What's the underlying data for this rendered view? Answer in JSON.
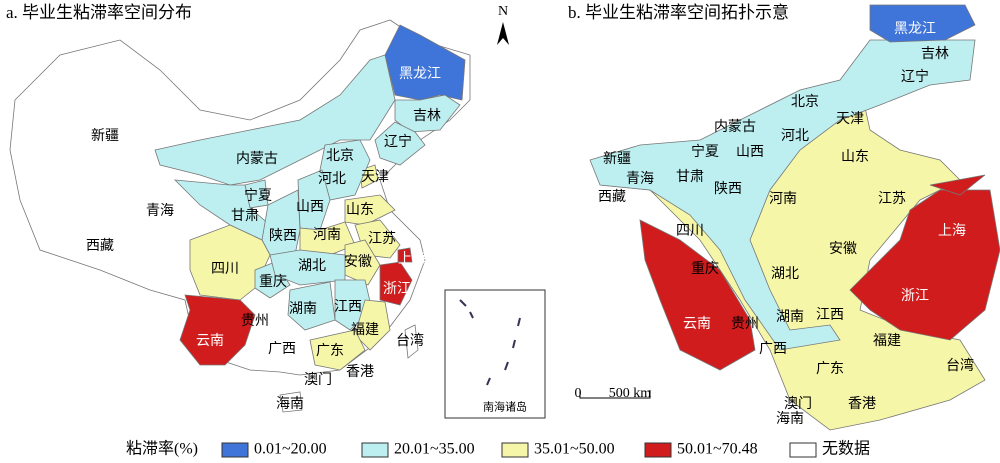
{
  "map_a": {
    "title": "a. 毕业生粘滞率空间分布",
    "classes": [
      0,
      1,
      1,
      1,
      1,
      2,
      1,
      4,
      1,
      1,
      2,
      4,
      1,
      1,
      4,
      2,
      2,
      2,
      3,
      2,
      1,
      1,
      3,
      3,
      4,
      1,
      1,
      4,
      2,
      2,
      4,
      4,
      4,
      4
    ]
  },
  "map_b": {
    "title": "b. 毕业生粘滞率空间拓扑示意",
    "classes": [
      0,
      1,
      1,
      1,
      1,
      2,
      1,
      1,
      1,
      1,
      2,
      1,
      1,
      1,
      2,
      2,
      2,
      2,
      3,
      2,
      1,
      1,
      3,
      3,
      3,
      1,
      1,
      2,
      2,
      2,
      2,
      2,
      2,
      2
    ]
  },
  "provinces": [
    "黑龙江",
    "吉林",
    "辽宁",
    "内蒙古",
    "北京",
    "天津",
    "河北",
    "新疆",
    "宁夏",
    "山西",
    "山东",
    "青海",
    "甘肃",
    "陕西",
    "西藏",
    "河南",
    "江苏",
    "四川",
    "上海",
    "安徽",
    "重庆",
    "湖北",
    "浙江",
    "云南",
    "贵州",
    "湖南",
    "江西",
    "广西",
    "福建",
    "广东",
    "台湾",
    "澳门",
    "香港",
    "海南"
  ],
  "legend": {
    "title": "粘滞率(%)",
    "items": [
      {
        "label": "0.01~20.00",
        "color": "#3f74d8"
      },
      {
        "label": "20.01~35.00",
        "color": "#bdeef0"
      },
      {
        "label": "35.01~50.00",
        "color": "#f6f6a9"
      },
      {
        "label": "50.01~70.48",
        "color": "#d01c1c"
      },
      {
        "label": "无数据",
        "color": "#ffffff"
      }
    ]
  },
  "north": "N",
  "scale": {
    "zero": "0",
    "length": "500 km"
  },
  "inset": "南海诸岛"
}
